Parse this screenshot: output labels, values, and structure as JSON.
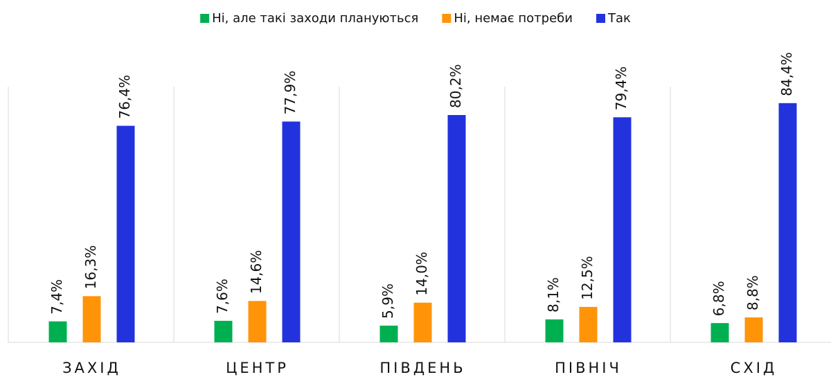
{
  "chart_data": {
    "type": "bar",
    "categories": [
      "ЗАХІД",
      "ЦЕНТР",
      "ПІВДЕНЬ",
      "ПІВНІЧ",
      "СХІД"
    ],
    "series": [
      {
        "name": "Ні, але такі заходи плануються",
        "color": "#00b050",
        "values": [
          7.4,
          7.6,
          5.9,
          8.1,
          6.8
        ],
        "value_labels": [
          "7,4%",
          "7,6%",
          "5,9%",
          "8,1%",
          "6,8%"
        ]
      },
      {
        "name": "Ні, немає потреби",
        "color": "#ff9408",
        "values": [
          16.3,
          14.6,
          14.0,
          12.5,
          8.8
        ],
        "value_labels": [
          "16,3%",
          "14,6%",
          "14,0%",
          "12,5%",
          "8,8%"
        ]
      },
      {
        "name": "Так",
        "color": "#2233dd",
        "values": [
          76.4,
          77.9,
          80.2,
          79.4,
          84.4
        ],
        "value_labels": [
          "76,4%",
          "77,9%",
          "80,2%",
          "79,4%",
          "84,4%"
        ]
      }
    ],
    "legend": "top"
  }
}
